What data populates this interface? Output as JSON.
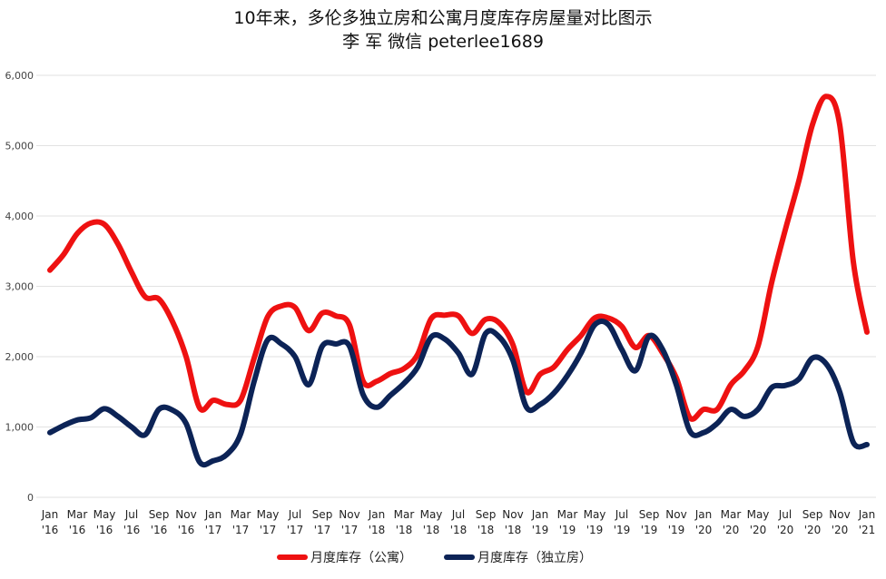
{
  "chart_data": {
    "type": "line",
    "title": "10年来，多伦多独立房和公寓月度库存房屋量对比图示",
    "subtitle": "李 军  微信 peterlee1689",
    "ylim": [
      0,
      6000
    ],
    "yticks": [
      0,
      1000,
      2000,
      3000,
      4000,
      5000,
      6000
    ],
    "ytick_labels": [
      "0",
      "1,000",
      "2,000",
      "3,000",
      "4,000",
      "5,000",
      "6,000"
    ],
    "grid": true,
    "legend_position": "bottom",
    "x_tick_labels": [
      [
        "Jan",
        "'16"
      ],
      [
        "Mar",
        "'16"
      ],
      [
        "May",
        "'16"
      ],
      [
        "Jul",
        "'16"
      ],
      [
        "Sep",
        "'16"
      ],
      [
        "Nov",
        "'16"
      ],
      [
        "Jan",
        "'17"
      ],
      [
        "Mar",
        "'17"
      ],
      [
        "May",
        "'17"
      ],
      [
        "Jul",
        "'17"
      ],
      [
        "Sep",
        "'17"
      ],
      [
        "Nov",
        "'17"
      ],
      [
        "Jan",
        "'18"
      ],
      [
        "Mar",
        "'18"
      ],
      [
        "May",
        "'18"
      ],
      [
        "Jul",
        "'18"
      ],
      [
        "Sep",
        "'18"
      ],
      [
        "Nov",
        "'18"
      ],
      [
        "Jan",
        "'19"
      ],
      [
        "Mar",
        "'19"
      ],
      [
        "May",
        "'19"
      ],
      [
        "Jul",
        "'19"
      ],
      [
        "Sep",
        "'19"
      ],
      [
        "Nov",
        "'19"
      ],
      [
        "Jan",
        "'20"
      ],
      [
        "Mar",
        "'20"
      ],
      [
        "May",
        "'20"
      ],
      [
        "Jul",
        "'20"
      ],
      [
        "Sep",
        "'20"
      ],
      [
        "Nov",
        "'20"
      ],
      [
        "Jan",
        "'21"
      ]
    ],
    "x": [
      "2016-01",
      "2016-02",
      "2016-03",
      "2016-04",
      "2016-05",
      "2016-06",
      "2016-07",
      "2016-08",
      "2016-09",
      "2016-10",
      "2016-11",
      "2016-12",
      "2017-01",
      "2017-02",
      "2017-03",
      "2017-04",
      "2017-05",
      "2017-06",
      "2017-07",
      "2017-08",
      "2017-09",
      "2017-10",
      "2017-11",
      "2017-12",
      "2018-01",
      "2018-02",
      "2018-03",
      "2018-04",
      "2018-05",
      "2018-06",
      "2018-07",
      "2018-08",
      "2018-09",
      "2018-10",
      "2018-11",
      "2018-12",
      "2019-01",
      "2019-02",
      "2019-03",
      "2019-04",
      "2019-05",
      "2019-06",
      "2019-07",
      "2019-08",
      "2019-09",
      "2019-10",
      "2019-11",
      "2019-12",
      "2020-01",
      "2020-02",
      "2020-03",
      "2020-04",
      "2020-05",
      "2020-06",
      "2020-07",
      "2020-08",
      "2020-09",
      "2020-10",
      "2020-11",
      "2020-12",
      "2021-01"
    ],
    "series": [
      {
        "name": "月度库存（公寓）",
        "color": "#ee1111",
        "values": [
          3230,
          3450,
          3750,
          3900,
          3880,
          3600,
          3200,
          2850,
          2820,
          2500,
          2000,
          1270,
          1380,
          1320,
          1380,
          1980,
          2570,
          2720,
          2700,
          2370,
          2620,
          2580,
          2450,
          1650,
          1650,
          1760,
          1830,
          2030,
          2540,
          2590,
          2580,
          2330,
          2530,
          2480,
          2170,
          1500,
          1750,
          1850,
          2100,
          2300,
          2550,
          2550,
          2430,
          2130,
          2300,
          2050,
          1700,
          1130,
          1250,
          1250,
          1600,
          1800,
          2150,
          3050,
          3800,
          4500,
          5300,
          5700,
          5300,
          3350,
          2350
        ]
      },
      {
        "name": "月度库存（独立房）",
        "color": "#0c2356",
        "values": [
          920,
          1020,
          1100,
          1130,
          1260,
          1150,
          1000,
          890,
          1250,
          1240,
          1050,
          500,
          520,
          610,
          900,
          1650,
          2240,
          2180,
          2000,
          1600,
          2150,
          2180,
          2150,
          1460,
          1280,
          1450,
          1620,
          1850,
          2280,
          2250,
          2050,
          1750,
          2330,
          2280,
          1950,
          1280,
          1320,
          1480,
          1730,
          2050,
          2450,
          2460,
          2100,
          1800,
          2290,
          2100,
          1600,
          940,
          920,
          1050,
          1250,
          1150,
          1250,
          1560,
          1590,
          1680,
          1980,
          1900,
          1500,
          780,
          750
        ]
      }
    ]
  }
}
